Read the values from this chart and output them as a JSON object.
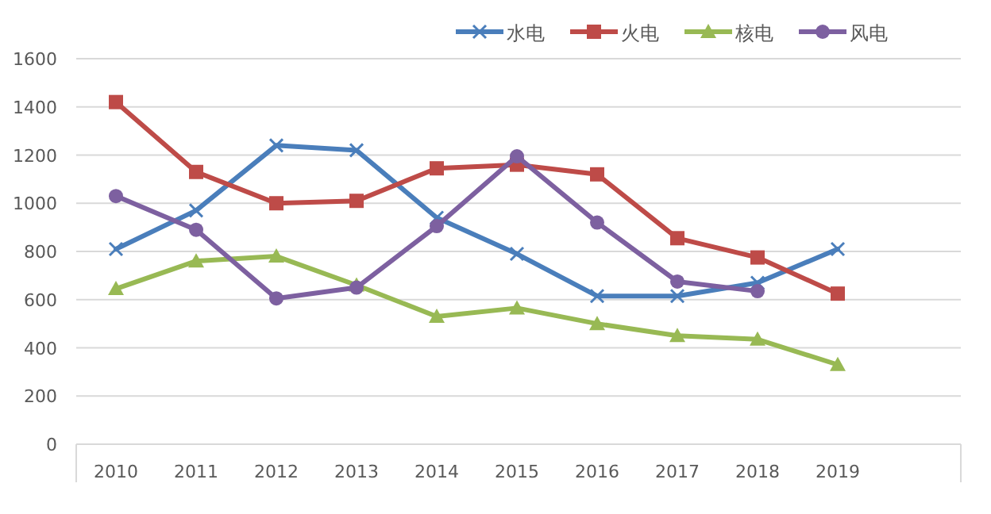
{
  "chart_data": {
    "type": "line",
    "categories": [
      "2010",
      "2011",
      "2012",
      "2013",
      "2014",
      "2015",
      "2016",
      "2017",
      "2018",
      "2019"
    ],
    "ylim": [
      0,
      1600
    ],
    "yticks": [
      0,
      200,
      400,
      600,
      800,
      1000,
      1200,
      1400,
      1600
    ],
    "grid": "y",
    "legend": "top right",
    "series": [
      {
        "name": "水电",
        "color": "#4a7ebb",
        "marker": "cross",
        "values": [
          810,
          970,
          1240,
          1220,
          940,
          790,
          615,
          615,
          670,
          810
        ]
      },
      {
        "name": "火电",
        "color": "#be4b48",
        "marker": "square",
        "values": [
          1420,
          1130,
          1000,
          1010,
          1145,
          1160,
          1120,
          855,
          775,
          625
        ]
      },
      {
        "name": "核电",
        "color": "#98b954",
        "marker": "triangle",
        "values": [
          645,
          760,
          780,
          660,
          530,
          565,
          500,
          450,
          435,
          330
        ]
      },
      {
        "name": "风电",
        "color": "#7d60a0",
        "marker": "circle",
        "values": [
          1030,
          890,
          605,
          650,
          905,
          1195,
          920,
          675,
          635,
          null
        ]
      }
    ]
  }
}
